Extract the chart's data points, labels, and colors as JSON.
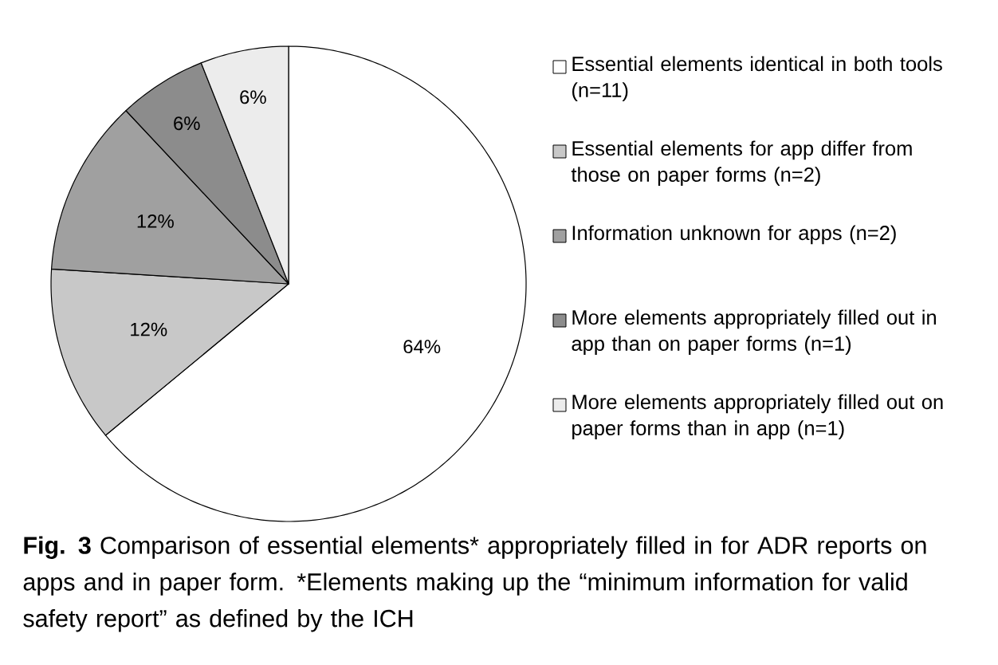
{
  "chart_data": {
    "type": "pie",
    "title": "**Fig. 3**  Comparison of essential elements* appropriately filled in for ADR reports on apps and in paper form. *Elements making up the “minimum information for valid safety report” as defined by the ICH",
    "categories": [
      "Essential elements identical in both tools (n=11)",
      "Essential elements for app differ from those on paper forms (n=2)",
      "Information unknown for apps (n=2)",
      "More elements appropriately filled out in app than on paper forms (n=1)",
      "More elements appropriately filled out on paper forms than in app (n=1)"
    ],
    "values": [
      64,
      12,
      12,
      6,
      6
    ],
    "value_labels": [
      "64%",
      "12%",
      "12%",
      "6%",
      "6%"
    ],
    "colors": [
      "#ffffff",
      "#c8c8c8",
      "#a0a0a0",
      "#8c8c8c",
      "#ececec"
    ],
    "legend": "right"
  }
}
